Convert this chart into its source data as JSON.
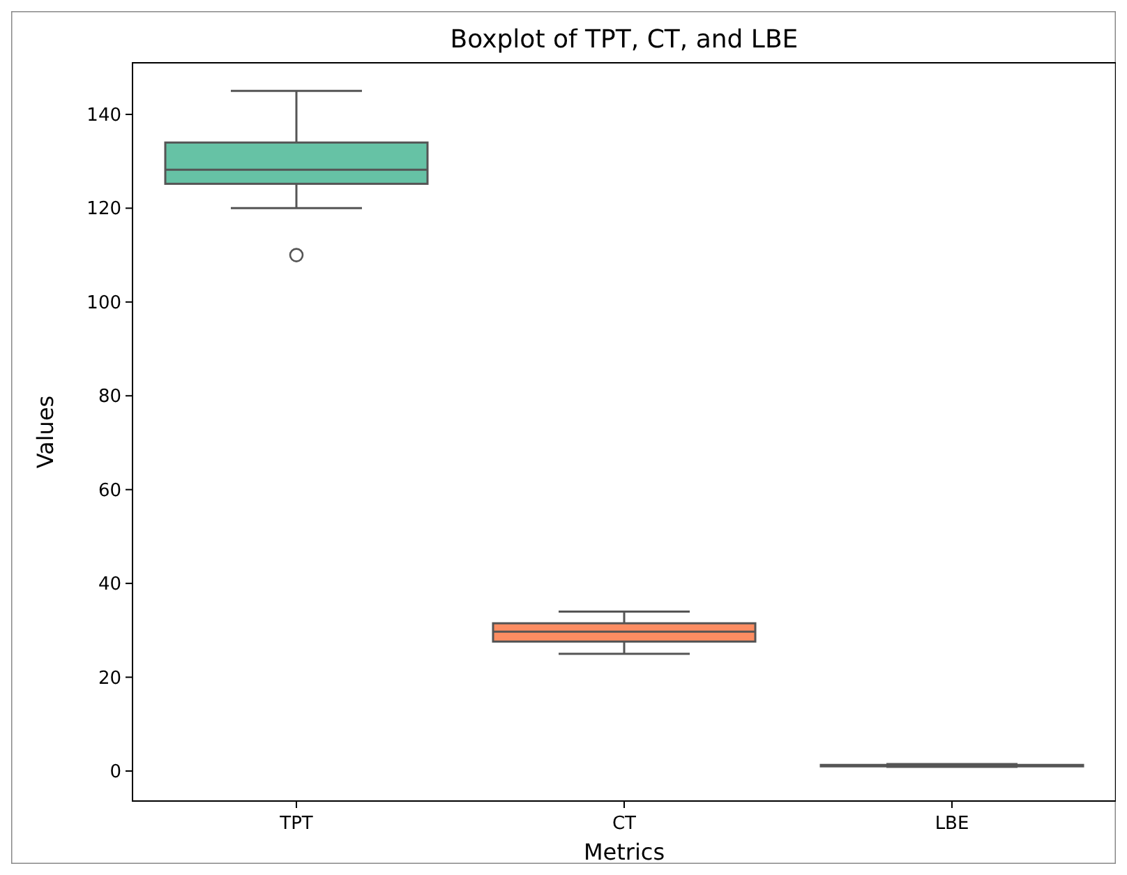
{
  "chart_data": {
    "type": "box",
    "title": "Boxplot of TPT, CT, and LBE",
    "xlabel": "Metrics",
    "ylabel": "Values",
    "categories": [
      "TPT",
      "CT",
      "LBE"
    ],
    "colors": [
      "#66c2a5",
      "#fc8d62",
      "#8da0cb"
    ],
    "boxes": [
      {
        "low": 120,
        "q1": 125.2,
        "median": 128.2,
        "q3": 134,
        "high": 145,
        "outliers": [
          110
        ]
      },
      {
        "low": 25,
        "q1": 27.6,
        "median": 29.7,
        "q3": 31.5,
        "high": 34
      },
      {
        "low": 0.9,
        "q1": 1.0,
        "median": 1.1,
        "q3": 1.3,
        "high": 1.5
      }
    ],
    "ylim": [
      -6.4,
      151
    ],
    "yticks": [
      0,
      20,
      40,
      60,
      80,
      100,
      120,
      140
    ],
    "grid": false
  }
}
